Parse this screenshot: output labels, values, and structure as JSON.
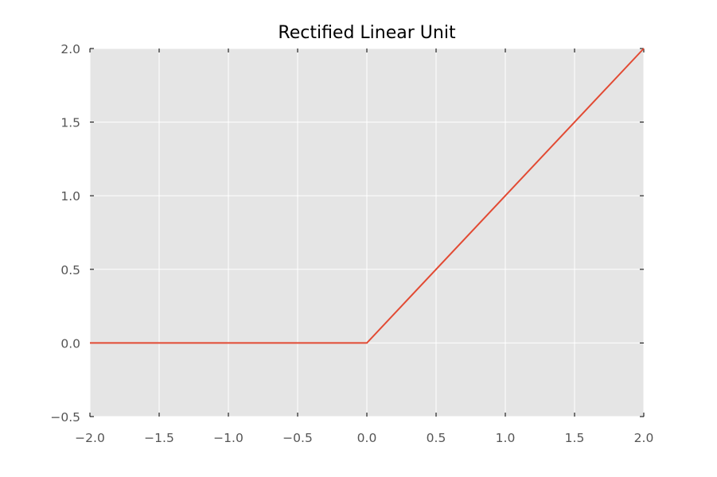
{
  "chart_data": {
    "type": "line",
    "title": "Rectified Linear Unit",
    "xlabel": "",
    "ylabel": "",
    "xlim": [
      -2.0,
      2.0
    ],
    "ylim": [
      -0.5,
      2.0
    ],
    "x_ticks": [
      "−2.0",
      "−1.5",
      "−1.0",
      "−0.5",
      "0.0",
      "0.5",
      "1.0",
      "1.5",
      "2.0"
    ],
    "y_ticks": [
      "−0.5",
      "0.0",
      "0.5",
      "1.0",
      "1.5",
      "2.0"
    ],
    "grid": true,
    "series": [
      {
        "x": [
          -2.0,
          0.0,
          2.0
        ],
        "y": [
          0.0,
          0.0,
          2.0
        ],
        "color": "#e24a33"
      }
    ]
  },
  "colors": {
    "plot_background": "#e5e5e5",
    "grid": "#ffffff",
    "tick_label": "#555555",
    "title": "#000000"
  }
}
